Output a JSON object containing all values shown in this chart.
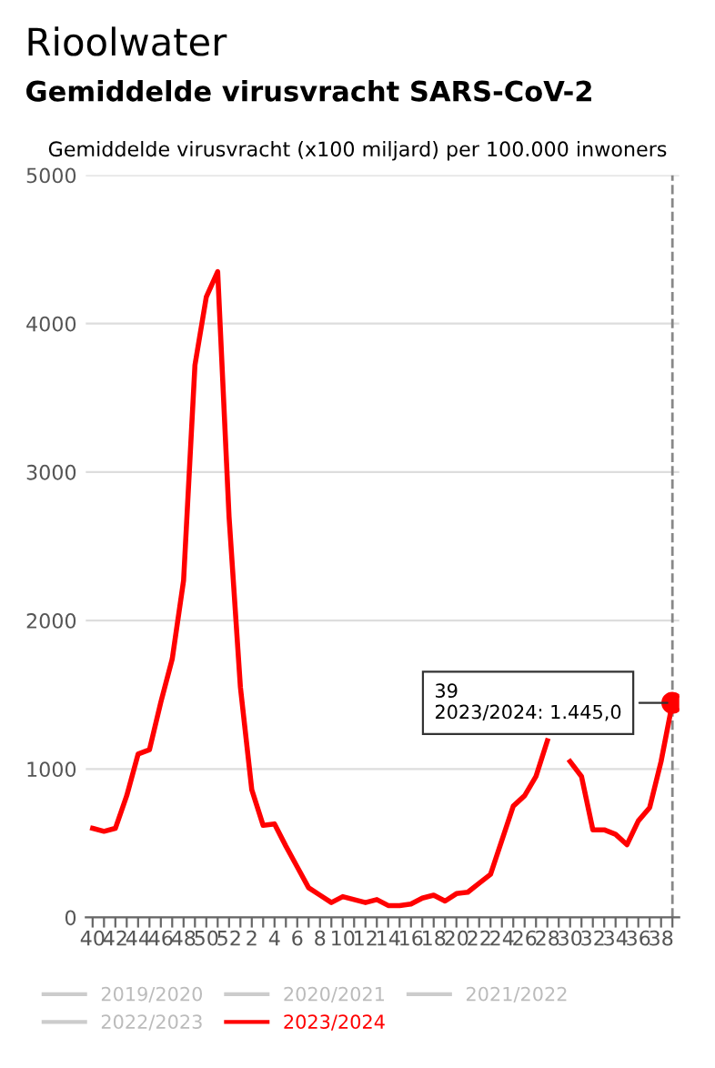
{
  "chart_data": {
    "type": "line",
    "title": "Rioolwater",
    "subtitle": "Gemiddelde virusvracht SARS-CoV-2",
    "ylabel": "Gemiddelde virusvracht (x100 miljard) per 100.000 inwoners",
    "categories": [
      "40",
      null,
      "42",
      null,
      "44",
      null,
      "46",
      null,
      "48",
      null,
      "50",
      null,
      "52",
      null,
      "2",
      null,
      "4",
      null,
      "6",
      null,
      "8",
      null,
      "10",
      null,
      "12",
      null,
      "14",
      null,
      "16",
      null,
      "18",
      null,
      "20",
      null,
      "22",
      null,
      "24",
      null,
      "26",
      null,
      "28",
      null,
      "30",
      null,
      "32",
      null,
      "34",
      null,
      "36",
      null,
      "38",
      null
    ],
    "series": [
      {
        "name": "2023/2024",
        "color": "#ff0000",
        "values": [
          600,
          580,
          600,
          820,
          1100,
          1130,
          1450,
          1740,
          2270,
          3720,
          4180,
          4350,
          2700,
          1550,
          860,
          620,
          630,
          480,
          340,
          200,
          150,
          100,
          140,
          120,
          100,
          120,
          80,
          80,
          90,
          130,
          150,
          110,
          160,
          170,
          230,
          290,
          520,
          750,
          820,
          950,
          1190,
          null,
          1050,
          950,
          590,
          590,
          560,
          490,
          650,
          740,
          1050,
          1445
        ]
      },
      {
        "type": "scatter",
        "color": "#ff0000",
        "values": [
          null,
          null,
          null,
          null,
          null,
          null,
          null,
          null,
          null,
          null,
          null,
          null,
          null,
          null,
          null,
          null,
          null,
          null,
          null,
          null,
          null,
          null,
          null,
          null,
          null,
          null,
          null,
          null,
          null,
          null,
          null,
          null,
          null,
          null,
          null,
          null,
          null,
          null,
          null,
          null,
          null,
          null,
          null,
          null,
          null,
          null,
          null,
          null,
          null,
          null,
          null,
          1445
        ]
      }
    ],
    "annotations": [
      "39\n2023/2024: 1.445,0",
      "2019/2020",
      "2020/2021",
      "2021/2022",
      "2022/2023"
    ],
    "ylim": [
      0,
      5000
    ],
    "yticks": [
      0,
      1000,
      2000,
      3000,
      4000,
      5000
    ],
    "grid": "y",
    "legend": "bottom",
    "line_style": "solid"
  }
}
